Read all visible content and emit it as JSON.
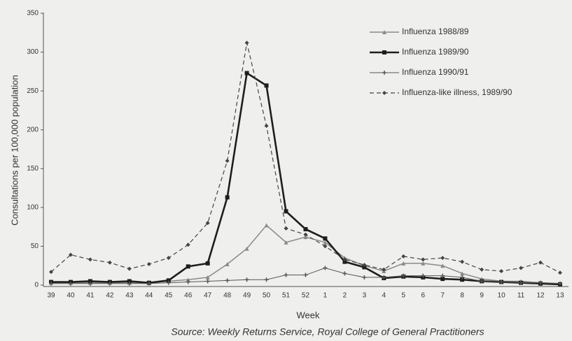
{
  "chart_data": {
    "type": "line",
    "ylabel": "Consultations per 100,000 population",
    "xlabel": "Week",
    "source": "Source: Weekly Returns Service, Royal College of General Practitioners",
    "categories": [
      "39",
      "40",
      "41",
      "42",
      "43",
      "44",
      "45",
      "46",
      "47",
      "48",
      "49",
      "50",
      "51",
      "52",
      "1",
      "2",
      "3",
      "4",
      "5",
      "6",
      "7",
      "8",
      "9",
      "10",
      "11",
      "12",
      "13"
    ],
    "ylim": [
      0,
      350
    ],
    "yticks": [
      0,
      50,
      100,
      150,
      200,
      250,
      300,
      350
    ],
    "legend": "upper right",
    "series": [
      {
        "name": "Influenza 1988/89",
        "color": "#8a8a8a",
        "width": 1.5,
        "dash": false,
        "marker": "triangle",
        "values": [
          3,
          3,
          3,
          3,
          3,
          3,
          5,
          7,
          10,
          27,
          47,
          77,
          55,
          62,
          55,
          35,
          25,
          18,
          28,
          28,
          25,
          15,
          8,
          5,
          5,
          3,
          2
        ]
      },
      {
        "name": "Influenza 1989/90",
        "color": "#1e1e1e",
        "width": 2.6,
        "dash": false,
        "marker": "square",
        "values": [
          4,
          4,
          5,
          4,
          5,
          3,
          6,
          24,
          28,
          113,
          273,
          257,
          95,
          72,
          60,
          30,
          23,
          9,
          11,
          10,
          8,
          7,
          5,
          4,
          3,
          2,
          1
        ]
      },
      {
        "name": "Influenza 1990/91",
        "color": "#555555",
        "width": 1,
        "dash": false,
        "marker": "plus",
        "values": [
          2,
          2,
          2,
          2,
          2,
          2,
          3,
          4,
          5,
          6,
          7,
          7,
          13,
          13,
          22,
          15,
          10,
          10,
          12,
          12,
          12,
          10,
          5,
          4,
          3,
          3,
          2
        ]
      },
      {
        "name": "Influenza-like illness, 1989/90",
        "color": "#444444",
        "width": 1.2,
        "dash": true,
        "marker": "diamond",
        "values": [
          17,
          39,
          33,
          29,
          21,
          27,
          35,
          52,
          80,
          160,
          312,
          205,
          73,
          65,
          50,
          33,
          26,
          20,
          37,
          33,
          35,
          30,
          20,
          18,
          22,
          29,
          16
        ]
      }
    ]
  }
}
